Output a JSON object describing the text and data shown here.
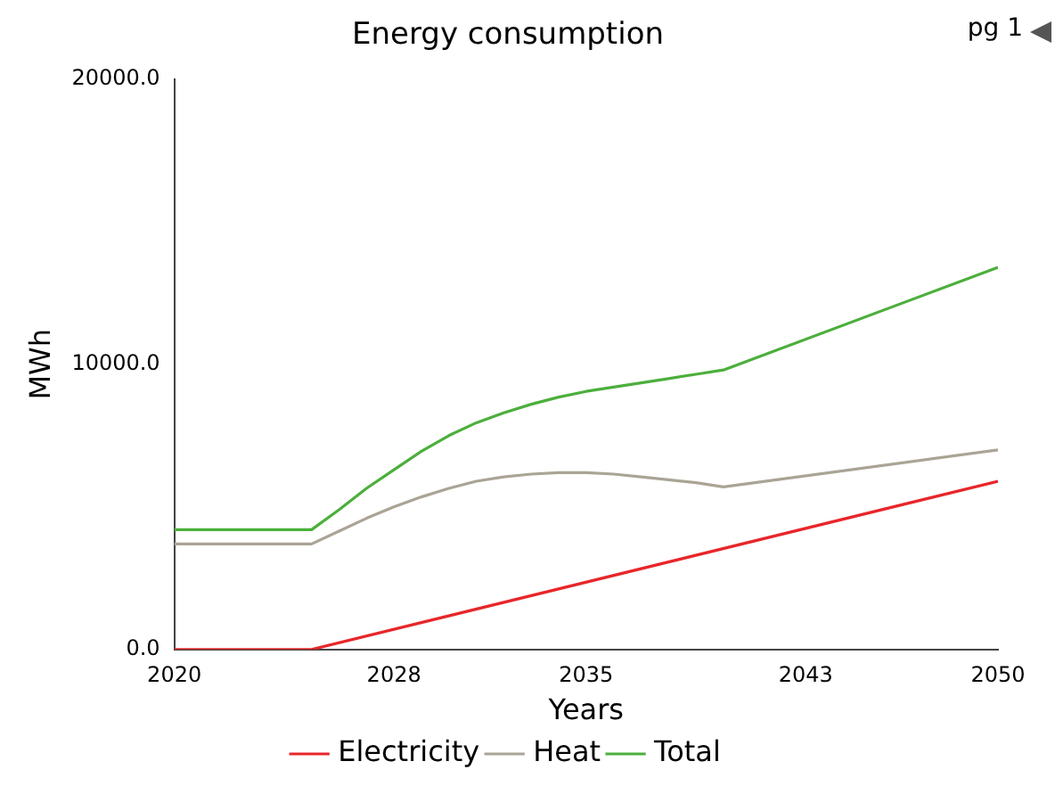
{
  "chart_data": {
    "type": "line",
    "title": "Energy consumption",
    "xlabel": "Years",
    "ylabel": "MWh",
    "xlim": [
      2020,
      2050
    ],
    "xticks": [
      2020,
      2028,
      2035,
      2043,
      2050
    ],
    "ylim": [
      0,
      20000
    ],
    "yticks": [
      {
        "value": 0,
        "label": "0.0"
      },
      {
        "value": 10000,
        "label": "10000.0"
      },
      {
        "value": 20000,
        "label": "20000.0"
      }
    ],
    "grid": false,
    "legend": "bottom",
    "marker": "none",
    "line_style": "solid",
    "annotations": [
      "pg 1"
    ],
    "series": [
      {
        "name": "Electricity",
        "color": "#e8262a",
        "x": [
          2020,
          2025,
          2050
        ],
        "values": [
          0,
          0,
          5900
        ]
      },
      {
        "name": "Heat",
        "color": "#aaa496",
        "x": [
          2020,
          2025,
          2026,
          2027,
          2028,
          2029,
          2030,
          2031,
          2032,
          2033,
          2034,
          2035,
          2036,
          2037,
          2038,
          2039,
          2040,
          2050
        ],
        "values": [
          3700,
          3700,
          4150,
          4600,
          5000,
          5350,
          5650,
          5900,
          6050,
          6150,
          6200,
          6200,
          6150,
          6050,
          5950,
          5850,
          5700,
          7000
        ]
      },
      {
        "name": "Total",
        "color": "#4caf3c",
        "x": [
          2020,
          2025,
          2026,
          2027,
          2028,
          2029,
          2030,
          2031,
          2032,
          2033,
          2034,
          2035,
          2036,
          2037,
          2038,
          2039,
          2040,
          2050
        ],
        "values": [
          4200,
          4200,
          4900,
          5650,
          6300,
          6950,
          7500,
          7950,
          8300,
          8600,
          8850,
          9050,
          9200,
          9350,
          9500,
          9650,
          9800,
          13400
        ]
      }
    ]
  }
}
